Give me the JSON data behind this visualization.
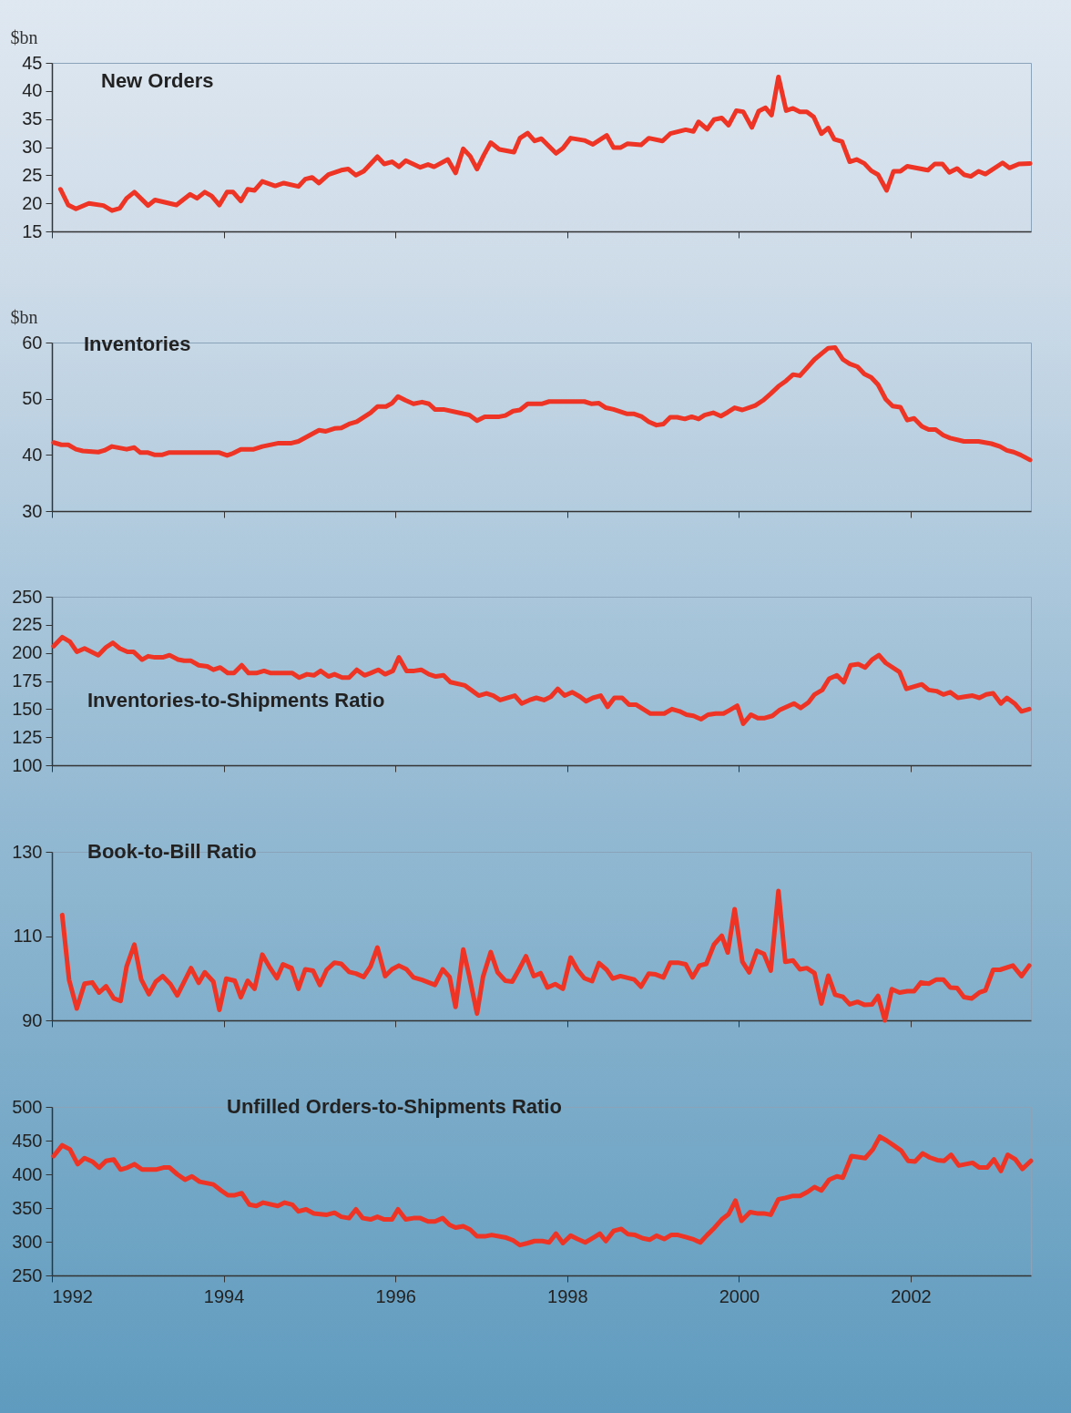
{
  "chart_data": [
    {
      "type": "line",
      "title": "New Orders",
      "ylabel": "$bn",
      "xlim": [
        1992,
        2003.4
      ],
      "xticks": [
        1992,
        1994,
        1996,
        1998,
        2000,
        2002
      ],
      "ylim": [
        15,
        45
      ],
      "yticks": [
        15,
        20,
        25,
        30,
        35,
        40,
        45
      ],
      "tick_labels": "y",
      "x": [
        1992.1,
        1992.19,
        1992.28,
        1992.43,
        1992.6,
        1992.7,
        1992.79,
        1992.87,
        1992.96,
        1993.12,
        1993.2,
        1993.45,
        1993.61,
        1993.69,
        1993.78,
        1993.86,
        1993.95,
        1994.04,
        1994.11,
        1994.2,
        1994.28,
        1994.36,
        1994.45,
        1994.6,
        1994.7,
        1994.87,
        1994.95,
        1995.03,
        1995.11,
        1995.22,
        1995.37,
        1995.45,
        1995.54,
        1995.63,
        1995.79,
        1995.87,
        1995.96,
        1996.04,
        1996.12,
        1996.29,
        1996.38,
        1996.45,
        1996.61,
        1996.7,
        1996.79,
        1996.87,
        1996.95,
        1997.03,
        1997.11,
        1997.21,
        1997.38,
        1997.45,
        1997.54,
        1997.62,
        1997.7,
        1997.87,
        1997.95,
        1998.04,
        1998.2,
        1998.3,
        1998.46,
        1998.54,
        1998.62,
        1998.7,
        1998.86,
        1998.95,
        1999.11,
        1999.2,
        1999.38,
        1999.47,
        1999.53,
        1999.63,
        1999.71,
        1999.8,
        1999.88,
        1999.97,
        2000.05,
        2000.15,
        2000.23,
        2000.31,
        2000.38,
        2000.46,
        2000.55,
        2000.63,
        2000.71,
        2000.79,
        2000.87,
        2000.96,
        2001.04,
        2001.11,
        2001.2,
        2001.29,
        2001.37,
        2001.46,
        2001.54,
        2001.62,
        2001.72,
        2001.8,
        2001.88,
        2001.96,
        2002.2,
        2002.28,
        2002.37,
        2002.45,
        2002.54,
        2002.62,
        2002.7,
        2002.79,
        2002.87,
        2003.07,
        2003.15,
        2003.26,
        2003.39
      ],
      "series": [
        {
          "color": "#ee3424",
          "values": [
            22.5,
            19.7,
            19.0,
            20.0,
            19.6,
            18.7,
            19.1,
            20.9,
            22.0,
            19.6,
            20.6,
            19.7,
            21.6,
            20.9,
            22.0,
            21.3,
            19.7,
            22.0,
            22.0,
            20.4,
            22.5,
            22.3,
            23.9,
            23.1,
            23.6,
            23.0,
            24.3,
            24.6,
            23.6,
            25.1,
            25.9,
            26.1,
            25.0,
            25.7,
            28.3,
            27.0,
            27.4,
            26.5,
            27.6,
            26.4,
            26.9,
            26.5,
            27.8,
            25.4,
            29.7,
            28.4,
            26.1,
            28.6,
            30.8,
            29.6,
            29.1,
            31.6,
            32.5,
            31.1,
            31.5,
            28.9,
            29.8,
            31.6,
            31.2,
            30.5,
            32.1,
            29.9,
            29.9,
            30.6,
            30.4,
            31.6,
            31.1,
            32.4,
            33.1,
            32.8,
            34.5,
            33.2,
            34.9,
            35.2,
            33.9,
            36.5,
            36.3,
            33.5,
            36.4,
            37.0,
            35.7,
            42.5,
            36.5,
            36.9,
            36.3,
            36.3,
            35.4,
            32.4,
            33.4,
            31.4,
            31.0,
            27.4,
            27.8,
            27.1,
            25.8,
            25.1,
            22.3,
            25.7,
            25.7,
            26.6,
            25.9,
            27.0,
            27.0,
            25.5,
            26.2,
            25.1,
            24.8,
            25.7,
            25.2,
            27.2,
            26.3,
            27.0,
            27.1
          ]
        }
      ]
    },
    {
      "type": "line",
      "title": "Inventories",
      "ylabel": "$bn",
      "xlim": [
        1992,
        2003.4
      ],
      "xticks": [
        1992,
        1994,
        1996,
        1998,
        2000,
        2002
      ],
      "ylim": [
        30,
        60
      ],
      "yticks": [
        30,
        40,
        50,
        60
      ],
      "tick_labels": "y",
      "x": [
        1992.02,
        1992.11,
        1992.19,
        1992.28,
        1992.36,
        1992.54,
        1992.61,
        1992.7,
        1992.87,
        1992.96,
        1993.03,
        1993.12,
        1993.2,
        1993.28,
        1993.36,
        1993.95,
        1994.04,
        1994.11,
        1994.2,
        1994.35,
        1994.45,
        1994.64,
        1994.79,
        1994.87,
        1995.11,
        1995.19,
        1995.29,
        1995.37,
        1995.46,
        1995.55,
        1995.64,
        1995.71,
        1995.79,
        1995.89,
        1995.96,
        1996.03,
        1996.12,
        1996.21,
        1996.31,
        1996.39,
        1996.46,
        1996.56,
        1996.86,
        1996.95,
        1997.04,
        1997.21,
        1997.28,
        1997.37,
        1997.45,
        1997.54,
        1997.71,
        1997.79,
        1998.2,
        1998.28,
        1998.37,
        1998.45,
        1998.54,
        1998.62,
        1998.7,
        1998.78,
        1998.87,
        1998.95,
        1999.04,
        1999.12,
        1999.2,
        1999.28,
        1999.37,
        1999.45,
        1999.53,
        1999.6,
        1999.7,
        1999.79,
        1999.87,
        1999.95,
        2000.04,
        2000.19,
        2000.28,
        2000.37,
        2000.46,
        2000.55,
        2000.63,
        2000.71,
        2000.88,
        2001.04,
        2001.12,
        2001.21,
        2001.29,
        2001.38,
        2001.46,
        2001.54,
        2001.62,
        2001.71,
        2001.79,
        2001.88,
        2001.96,
        2002.04,
        2002.13,
        2002.21,
        2002.29,
        2002.38,
        2002.46,
        2002.62,
        2002.79,
        2002.94,
        2003.04,
        2003.12,
        2003.2,
        2003.28,
        2003.39
      ],
      "series": [
        {
          "color": "#ee3424",
          "values": [
            42.2,
            41.8,
            41.8,
            41.0,
            40.7,
            40.5,
            40.8,
            41.5,
            41.0,
            41.3,
            40.4,
            40.4,
            40.0,
            40.0,
            40.4,
            40.4,
            39.9,
            40.3,
            41.0,
            41.0,
            41.5,
            42.1,
            42.1,
            42.4,
            44.4,
            44.2,
            44.7,
            44.8,
            45.5,
            45.9,
            46.8,
            47.5,
            48.6,
            48.6,
            49.2,
            50.4,
            49.7,
            49.1,
            49.4,
            49.1,
            48.1,
            48.1,
            47.1,
            46.1,
            46.8,
            46.8,
            47.0,
            47.8,
            48.0,
            49.1,
            49.1,
            49.5,
            49.5,
            49.1,
            49.2,
            48.4,
            48.1,
            47.7,
            47.3,
            47.3,
            46.8,
            45.9,
            45.3,
            45.5,
            46.7,
            46.7,
            46.4,
            46.8,
            46.4,
            47.1,
            47.5,
            46.9,
            47.6,
            48.4,
            48.0,
            48.8,
            49.7,
            50.9,
            52.2,
            53.2,
            54.3,
            54.1,
            57.0,
            59.0,
            59.1,
            57.0,
            56.2,
            55.7,
            54.4,
            53.8,
            52.5,
            49.9,
            48.7,
            48.5,
            46.2,
            46.5,
            45.1,
            44.5,
            44.5,
            43.5,
            43.0,
            42.4,
            42.4,
            42.0,
            41.5,
            40.8,
            40.5,
            40.0,
            39.1
          ]
        }
      ]
    },
    {
      "type": "line",
      "title": "Inventories-to-Shipments Ratio",
      "xlim": [
        1992,
        2003.4
      ],
      "xticks": [
        1992,
        1994,
        1996,
        1998,
        2000,
        2002
      ],
      "ylim": [
        100,
        250
      ],
      "yticks": [
        100,
        125,
        150,
        175,
        200,
        225,
        250
      ],
      "tick_labels": "y",
      "x": [
        1992.02,
        1992.12,
        1992.21,
        1992.29,
        1992.38,
        1992.54,
        1992.63,
        1992.71,
        1992.79,
        1992.88,
        1992.95,
        1993.05,
        1993.12,
        1993.2,
        1993.29,
        1993.37,
        1993.47,
        1993.54,
        1993.62,
        1993.71,
        1993.81,
        1993.88,
        1993.96,
        1994.05,
        1994.12,
        1994.21,
        1994.29,
        1994.38,
        1994.47,
        1994.55,
        1994.8,
        1994.88,
        1994.97,
        1995.05,
        1995.13,
        1995.22,
        1995.29,
        1995.38,
        1995.46,
        1995.55,
        1995.64,
        1995.71,
        1995.8,
        1995.88,
        1995.97,
        1996.04,
        1996.13,
        1996.22,
        1996.3,
        1996.39,
        1996.47,
        1996.56,
        1996.64,
        1996.81,
        1996.88,
        1996.97,
        1997.06,
        1997.14,
        1997.22,
        1997.39,
        1997.47,
        1997.56,
        1997.64,
        1997.73,
        1997.81,
        1997.89,
        1997.97,
        1998.06,
        1998.15,
        1998.22,
        1998.3,
        1998.39,
        1998.47,
        1998.55,
        1998.64,
        1998.72,
        1998.8,
        1998.97,
        1999.13,
        1999.22,
        1999.31,
        1999.39,
        1999.47,
        1999.56,
        1999.64,
        1999.73,
        1999.82,
        1999.89,
        1999.98,
        2000.05,
        2000.14,
        2000.22,
        2000.3,
        2000.39,
        2000.47,
        2000.64,
        2000.72,
        2000.81,
        2000.88,
        2000.97,
        2001.05,
        2001.14,
        2001.22,
        2001.3,
        2001.39,
        2001.47,
        2001.55,
        2001.63,
        2001.71,
        2001.87,
        2001.95,
        2002.04,
        2002.13,
        2002.21,
        2002.3,
        2002.38,
        2002.46,
        2002.55,
        2002.63,
        2002.72,
        2002.8,
        2002.88,
        2002.96,
        2003.05,
        2003.12,
        2003.21,
        2003.29,
        2003.38
      ],
      "series": [
        {
          "color": "#ee3424",
          "values": [
            206,
            214,
            210,
            201,
            204,
            198,
            205,
            209,
            204,
            201,
            201,
            194,
            197,
            196,
            196,
            198,
            194,
            193,
            193,
            189,
            188,
            185,
            187,
            182,
            182,
            189,
            182,
            182,
            184,
            182,
            182,
            178,
            181,
            180,
            184,
            179,
            181,
            178,
            178,
            185,
            180,
            182,
            185,
            181,
            184,
            196,
            184,
            184,
            185,
            181,
            179,
            180,
            174,
            171,
            167,
            162,
            164,
            162,
            158,
            162,
            155,
            158,
            160,
            158,
            161,
            168,
            162,
            165,
            161,
            157,
            160,
            162,
            152,
            160,
            160,
            154,
            154,
            146,
            146,
            150,
            148,
            145,
            144,
            141,
            145,
            146,
            146,
            149,
            153,
            137,
            145,
            142,
            142,
            144,
            149,
            155,
            151,
            156,
            163,
            167,
            177,
            180,
            174,
            189,
            190,
            187,
            194,
            198,
            191,
            183,
            168,
            170,
            172,
            167,
            166,
            163,
            165,
            160,
            161,
            162,
            160,
            163,
            164,
            155,
            160,
            155,
            148,
            150
          ]
        }
      ]
    },
    {
      "type": "line",
      "title": "Book-to-Bill Ratio",
      "xlim": [
        1992,
        2003.4
      ],
      "xticks": [
        1992,
        1994,
        1996,
        1998,
        2000,
        2002
      ],
      "ylim": [
        90,
        130
      ],
      "yticks": [
        90,
        110,
        130
      ],
      "tick_labels": "y",
      "x": [
        1992.12,
        1992.2,
        1992.29,
        1992.38,
        1992.47,
        1992.55,
        1992.63,
        1992.72,
        1992.8,
        1992.87,
        1992.96,
        1993.04,
        1993.13,
        1993.21,
        1993.29,
        1993.38,
        1993.46,
        1993.62,
        1993.71,
        1993.78,
        1993.88,
        1993.95,
        1994.03,
        1994.13,
        1994.2,
        1994.28,
        1994.36,
        1994.45,
        1994.53,
        1994.62,
        1994.69,
        1994.79,
        1994.87,
        1994.95,
        1995.04,
        1995.12,
        1995.2,
        1995.29,
        1995.37,
        1995.46,
        1995.54,
        1995.63,
        1995.71,
        1995.79,
        1995.88,
        1995.96,
        1996.04,
        1996.13,
        1996.21,
        1996.31,
        1996.46,
        1996.55,
        1996.63,
        1996.7,
        1996.79,
        1996.86,
        1996.95,
        1997.02,
        1997.11,
        1997.19,
        1997.28,
        1997.36,
        1997.44,
        1997.52,
        1997.61,
        1997.69,
        1997.77,
        1997.86,
        1997.95,
        1998.04,
        1998.12,
        1998.2,
        1998.29,
        1998.37,
        1998.46,
        1998.53,
        1998.62,
        1998.78,
        1998.86,
        1998.95,
        1999.03,
        1999.12,
        1999.2,
        1999.29,
        1999.38,
        1999.46,
        1999.54,
        1999.62,
        1999.71,
        1999.8,
        1999.87,
        1999.95,
        2000.04,
        2000.12,
        2000.21,
        2000.29,
        2000.37,
        2000.46,
        2000.54,
        2000.63,
        2000.71,
        2000.79,
        2000.88,
        2000.96,
        2001.04,
        2001.12,
        2001.21,
        2001.29,
        2001.38,
        2001.46,
        2001.55,
        2001.62,
        2001.7,
        2001.78,
        2001.87,
        2001.96,
        2002.04,
        2002.12,
        2002.21,
        2002.3,
        2002.38,
        2002.46,
        2002.54,
        2002.62,
        2002.71,
        2002.8,
        2002.87,
        2002.96,
        2003.04,
        2003.19,
        2003.29,
        2003.38
      ],
      "series": [
        {
          "color": "#ee3424",
          "values": [
            115,
            99.6,
            92.8,
            98.7,
            99.0,
            96.6,
            98.1,
            95.2,
            94.6,
            102.8,
            108.0,
            99.7,
            96.2,
            99.2,
            100.5,
            98.6,
            95.9,
            102.4,
            98.9,
            101.4,
            99.2,
            92.5,
            99.9,
            99.4,
            95.5,
            99.4,
            97.5,
            105.6,
            102.8,
            100.0,
            103.3,
            102.4,
            97.5,
            102.1,
            101.8,
            98.4,
            102.0,
            103.7,
            103.4,
            101.5,
            101.1,
            100.3,
            102.8,
            107.3,
            100.5,
            102.1,
            103.0,
            102.1,
            100.2,
            99.6,
            98.4,
            102.1,
            100.3,
            93.2,
            106.8,
            100.5,
            91.6,
            100.3,
            106.2,
            101.4,
            99.4,
            99.2,
            102.1,
            105.2,
            100.5,
            101.2,
            97.8,
            98.6,
            97.5,
            104.9,
            102.0,
            100.0,
            99.3,
            103.6,
            102.0,
            99.9,
            100.5,
            99.7,
            98.0,
            101.1,
            100.9,
            100.2,
            103.7,
            103.7,
            103.3,
            100.2,
            103.0,
            103.4,
            108.0,
            110.1,
            106.1,
            116.4,
            103.9,
            101.4,
            106.5,
            105.8,
            101.8,
            120.7,
            103.9,
            104.2,
            102.1,
            102.4,
            101.2,
            94.0,
            100.6,
            96.1,
            95.6,
            93.8,
            94.4,
            93.7,
            93.8,
            95.8,
            90,
            97.4,
            96.6,
            96.9,
            96.9,
            99.0,
            98.7,
            99.7,
            99.7,
            97.8,
            97.7,
            95.5,
            95.2,
            96.6,
            97.1,
            102.0,
            102.0,
            103.0,
            100.5,
            103.0
          ]
        }
      ]
    },
    {
      "type": "line",
      "title": "Unfilled Orders-to-Shipments Ratio",
      "xlim": [
        1992,
        2003.4
      ],
      "xticks": [
        1992,
        1994,
        1996,
        1998,
        2000,
        2002
      ],
      "ylim": [
        250,
        500
      ],
      "yticks": [
        250,
        300,
        350,
        400,
        450,
        500
      ],
      "x": [
        1992.02,
        1992.12,
        1992.21,
        1992.3,
        1992.38,
        1992.47,
        1992.55,
        1992.63,
        1992.72,
        1992.8,
        1992.88,
        1992.96,
        1993.05,
        1993.21,
        1993.3,
        1993.37,
        1993.46,
        1993.55,
        1993.63,
        1993.72,
        1993.88,
        1993.97,
        1994.05,
        1994.13,
        1994.21,
        1994.3,
        1994.38,
        1994.46,
        1994.63,
        1994.71,
        1994.8,
        1994.87,
        1994.96,
        1995.05,
        1995.2,
        1995.29,
        1995.37,
        1995.46,
        1995.54,
        1995.62,
        1995.71,
        1995.79,
        1995.87,
        1995.96,
        1996.03,
        1996.12,
        1996.21,
        1996.29,
        1996.38,
        1996.46,
        1996.55,
        1996.63,
        1996.7,
        1996.79,
        1996.87,
        1996.95,
        1997.04,
        1997.12,
        1997.29,
        1997.37,
        1997.45,
        1997.54,
        1997.62,
        1997.71,
        1997.79,
        1997.87,
        1997.95,
        1998.04,
        1998.12,
        1998.21,
        1998.29,
        1998.38,
        1998.45,
        1998.54,
        1998.63,
        1998.71,
        1998.79,
        1998.88,
        1998.96,
        1999.04,
        1999.13,
        1999.21,
        1999.29,
        1999.38,
        1999.46,
        1999.55,
        1999.63,
        1999.71,
        1999.8,
        1999.88,
        1999.96,
        2000.03,
        2000.13,
        2000.21,
        2000.29,
        2000.37,
        2000.46,
        2000.54,
        2000.63,
        2000.71,
        2000.8,
        2000.88,
        2000.96,
        2001.05,
        2001.14,
        2001.21,
        2001.31,
        2001.47,
        2001.56,
        2001.64,
        2001.72,
        2001.8,
        2001.89,
        2001.97,
        2002.05,
        2002.14,
        2002.22,
        2002.31,
        2002.39,
        2002.47,
        2002.56,
        2002.72,
        2002.8,
        2002.89,
        2002.97,
        2003.05,
        2003.13,
        2003.22,
        2003.3,
        2003.4
      ],
      "series": [
        {
          "color": "#ee3424",
          "values": [
            427,
            443,
            437,
            415,
            424,
            419,
            410,
            420,
            422,
            407,
            410,
            415,
            407,
            407,
            410,
            410,
            400,
            392,
            397,
            389,
            385,
            376,
            369,
            369,
            372,
            355,
            353,
            358,
            353,
            358,
            355,
            345,
            348,
            342,
            340,
            343,
            337,
            335,
            348,
            335,
            333,
            337,
            333,
            333,
            348,
            333,
            335,
            335,
            330,
            330,
            335,
            325,
            321,
            323,
            318,
            308,
            308,
            310,
            306,
            302,
            295,
            298,
            301,
            301,
            299,
            312,
            298,
            309,
            304,
            299,
            305,
            312,
            301,
            316,
            319,
            311,
            310,
            305,
            303,
            309,
            304,
            310,
            310,
            307,
            304,
            299,
            310,
            320,
            333,
            341,
            361,
            331,
            344,
            342,
            342,
            340,
            363,
            365,
            368,
            368,
            374,
            381,
            376,
            392,
            397,
            395,
            427,
            424,
            437,
            456,
            450,
            443,
            435,
            420,
            419,
            431,
            425,
            421,
            420,
            429,
            413,
            417,
            410,
            410,
            422,
            405,
            429,
            422,
            408,
            420
          ]
        }
      ]
    }
  ]
}
